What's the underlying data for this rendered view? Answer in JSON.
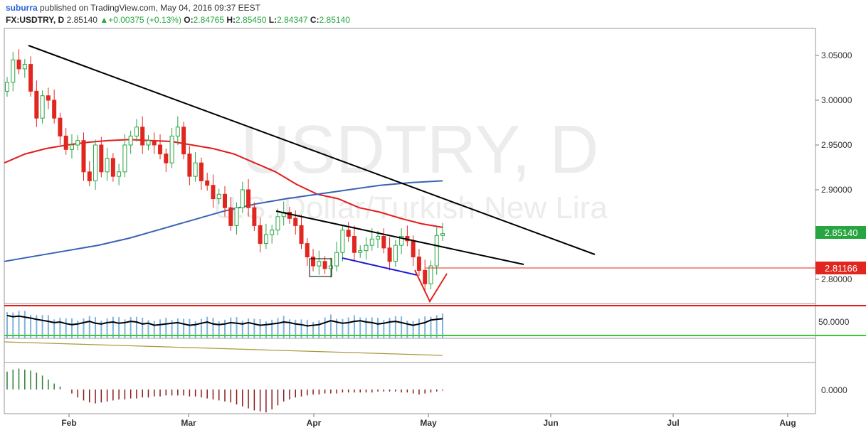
{
  "header": {
    "author": "suburra",
    "published": "published on TradingView.com, May 04, 2016 09:37 EEST",
    "symbol": "FX:USDTRY, D",
    "last": "2.85140",
    "change_arrow": "▲",
    "change": "+0.00375 (+0.13%)",
    "o_label": "O:",
    "o_value": "2.84765",
    "h_label": "H:",
    "h_value": "2.85450",
    "l_label": "L:",
    "l_value": "2.84347",
    "c_label": "C:",
    "c_value": "2.85140"
  },
  "watermark": {
    "title": "USDTRY, D",
    "subtitle": "U.S. Dollar/Turkish New Lira"
  },
  "colors": {
    "up": "#26a540",
    "down": "#e0261f",
    "ma_fast": "#e31b1b",
    "ma_slow": "#3a62b3",
    "trend": "#000000",
    "support": "#1c1cd6",
    "osc_bars": "#7fb3e0",
    "osc_line": "#000000",
    "band_high": "#e31b1b",
    "band_low": "#33cc33",
    "adx_line": "#a89a3a",
    "macd_pos": "#2e7d32",
    "macd_neg": "#8b1a1a",
    "price_badge": "#26a540",
    "level_badge": "#e0261f"
  },
  "chart_data": {
    "type": "candlestick",
    "symbol": "FX:USDTRY",
    "timeframe": "D",
    "x_ticks": [
      "Feb",
      "Mar",
      "Apr",
      "May",
      "Jun",
      "Jul",
      "Aug"
    ],
    "y_ticks": [
      "3.05000",
      "3.00000",
      "2.95000",
      "2.90000",
      "2.80000"
    ],
    "ylim": [
      2.775,
      3.075
    ],
    "current_price": "2.85140",
    "horizontal_level": "2.81166",
    "candles_close": [
      3.02,
      3.045,
      3.035,
      3.04,
      3.01,
      2.98,
      3.005,
      3.0,
      2.98,
      2.96,
      2.945,
      2.95,
      2.955,
      2.92,
      2.91,
      2.95,
      2.92,
      2.935,
      2.915,
      2.92,
      2.95,
      2.96,
      2.97,
      2.95,
      2.955,
      2.95,
      2.94,
      2.93,
      2.96,
      2.97,
      2.94,
      2.915,
      2.93,
      2.91,
      2.905,
      2.89,
      2.895,
      2.88,
      2.86,
      2.88,
      2.9,
      2.88,
      2.86,
      2.84,
      2.85,
      2.855,
      2.87,
      2.875,
      2.868,
      2.86,
      2.84,
      2.825,
      2.815,
      2.82,
      2.812,
      2.815,
      2.83,
      2.855,
      2.848,
      2.83,
      2.832,
      2.838,
      2.845,
      2.848,
      2.835,
      2.82,
      2.838,
      2.848,
      2.843,
      2.825,
      2.81,
      2.795,
      2.815,
      2.849,
      2.851
    ],
    "ma_fast": [
      2.93,
      2.94,
      2.946,
      2.95,
      2.953,
      2.955,
      2.956,
      2.955,
      2.954,
      2.95,
      2.946,
      2.94,
      2.93,
      2.92,
      2.906,
      2.895,
      2.89,
      2.88,
      2.875,
      2.868,
      2.862,
      2.858
    ],
    "ma_slow": [
      2.82,
      2.826,
      2.832,
      2.838,
      2.846,
      2.856,
      2.866,
      2.876,
      2.884,
      2.89,
      2.895,
      2.9,
      2.905,
      2.908,
      2.91
    ],
    "oscillator": {
      "label": "50.0000",
      "high_band": 72,
      "low_band": 28,
      "values": [
        70,
        66,
        68,
        65,
        62,
        58,
        55,
        52,
        48,
        50,
        45,
        42,
        44,
        48,
        52,
        46,
        44,
        48,
        50,
        46,
        48,
        52,
        50,
        44,
        46,
        40,
        42,
        44,
        46,
        48,
        44,
        40,
        42,
        46,
        50,
        44,
        42,
        44,
        48,
        46,
        44,
        48,
        44,
        40,
        42,
        44,
        46,
        50,
        48,
        44,
        42,
        38,
        40,
        42,
        48,
        54,
        50,
        46,
        48,
        52,
        54,
        50,
        48,
        44,
        46,
        50,
        52,
        48,
        44,
        40,
        44,
        48,
        56,
        58,
        60
      ]
    },
    "adx_line": [
      22,
      21,
      20,
      19,
      18,
      17,
      16,
      15,
      14,
      13,
      12,
      11,
      10,
      9,
      8,
      7,
      6,
      5,
      4,
      3
    ],
    "macd": {
      "label": "0.0000",
      "values": [
        0.018,
        0.02,
        0.021,
        0.02,
        0.019,
        0.017,
        0.014,
        0.01,
        0.006,
        0.003,
        0.0,
        -0.004,
        -0.008,
        -0.011,
        -0.013,
        -0.014,
        -0.013,
        -0.012,
        -0.011,
        -0.01,
        -0.01,
        -0.009,
        -0.009,
        -0.008,
        -0.008,
        -0.007,
        -0.007,
        -0.006,
        -0.006,
        -0.006,
        -0.006,
        -0.007,
        -0.007,
        -0.008,
        -0.009,
        -0.01,
        -0.011,
        -0.012,
        -0.013,
        -0.015,
        -0.017,
        -0.019,
        -0.021,
        -0.022,
        -0.023,
        -0.02,
        -0.016,
        -0.012,
        -0.01,
        -0.008,
        -0.007,
        -0.006,
        -0.005,
        -0.005,
        -0.004,
        -0.004,
        -0.004,
        -0.003,
        -0.003,
        -0.003,
        -0.003,
        -0.003,
        -0.003,
        -0.002,
        -0.002,
        -0.002,
        -0.002,
        -0.003,
        -0.003,
        -0.004,
        -0.005,
        -0.004,
        -0.003,
        -0.002,
        -0.001
      ]
    }
  }
}
